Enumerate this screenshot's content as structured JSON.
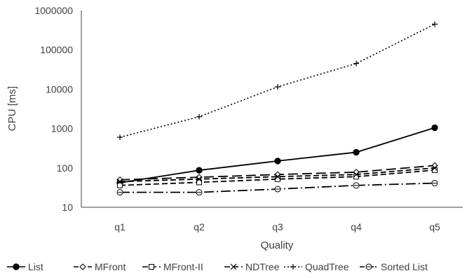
{
  "chart_data": {
    "type": "line",
    "title": "",
    "xlabel": "Quality",
    "ylabel": "CPU [ms]",
    "yscale": "log",
    "ylim": [
      10,
      1000000
    ],
    "grid": false,
    "legend_position": "bottom",
    "categories": [
      "q1",
      "q2",
      "q3",
      "q4",
      "q5"
    ],
    "y_ticks": [
      "10",
      "100",
      "1000",
      "10000",
      "100000",
      "1000000"
    ],
    "series": [
      {
        "name": "List",
        "marker": "filled-circle",
        "dash": "solid",
        "color": "#000000",
        "values": [
          42,
          87,
          150,
          250,
          1050
        ]
      },
      {
        "name": "MFront",
        "marker": "diamond",
        "dash": "long-dash",
        "color": "#000000",
        "values": [
          50,
          58,
          68,
          78,
          115
        ]
      },
      {
        "name": "MFront-II",
        "marker": "square",
        "dash": "dash",
        "color": "#000000",
        "values": [
          36,
          43,
          52,
          60,
          88
        ]
      },
      {
        "name": "NDTree",
        "marker": "x",
        "dash": "dash",
        "color": "#000000",
        "values": [
          45,
          52,
          60,
          68,
          100
        ]
      },
      {
        "name": "QuadTree",
        "marker": "plus",
        "dash": "dotted",
        "color": "#000000",
        "values": [
          600,
          2000,
          11500,
          45000,
          450000
        ]
      },
      {
        "name": "Sorted List",
        "marker": "circle-dash",
        "dash": "dash-dot",
        "color": "#000000",
        "values": [
          24,
          24,
          29,
          36,
          41
        ]
      }
    ]
  }
}
